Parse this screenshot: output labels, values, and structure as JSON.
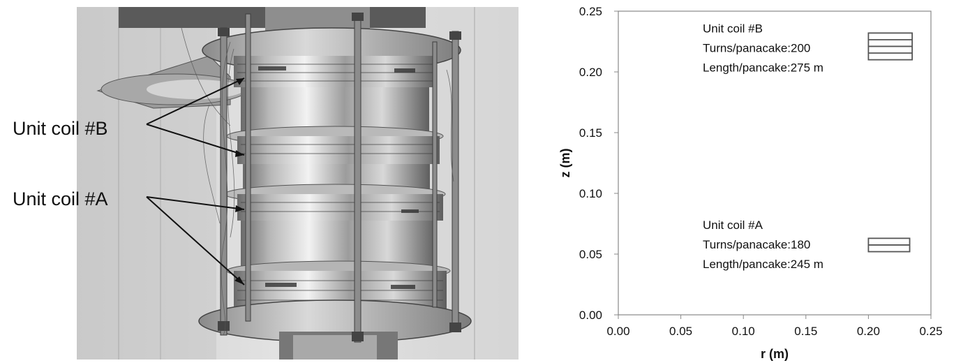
{
  "photo": {
    "callouts": [
      {
        "label": "Unit coil #B"
      },
      {
        "label": "Unit coil #A"
      }
    ]
  },
  "chart_data": {
    "type": "scatter",
    "xlabel": "r (m)",
    "ylabel": "z (m)",
    "xlim": [
      0,
      0.25
    ],
    "ylim": [
      0,
      0.25
    ],
    "xticks": [
      "0.00",
      "0.05",
      "0.10",
      "0.15",
      "0.20",
      "0.25"
    ],
    "yticks": [
      "0.00",
      "0.05",
      "0.10",
      "0.15",
      "0.20",
      "0.25"
    ],
    "grid": false,
    "coils": [
      {
        "name": "Unit coil #B",
        "lines": [
          "Unit coil #B",
          "Turns/panacake:200",
          "Length/pancake:275 m"
        ],
        "r_inner": 0.2,
        "r_outer": 0.235,
        "pancake_z": [
          0.21,
          0.2155,
          0.221,
          0.2265,
          0.232
        ]
      },
      {
        "name": "Unit coil #A",
        "lines": [
          "Unit coil #A",
          "Turns/panacake:180",
          "Length/pancake:245 m"
        ],
        "r_inner": 0.2,
        "r_outer": 0.233,
        "pancake_z": [
          0.052,
          0.0575,
          0.063
        ]
      }
    ],
    "colors": {
      "outline": "#555555",
      "axis": "#888888",
      "text": "#111111"
    }
  }
}
